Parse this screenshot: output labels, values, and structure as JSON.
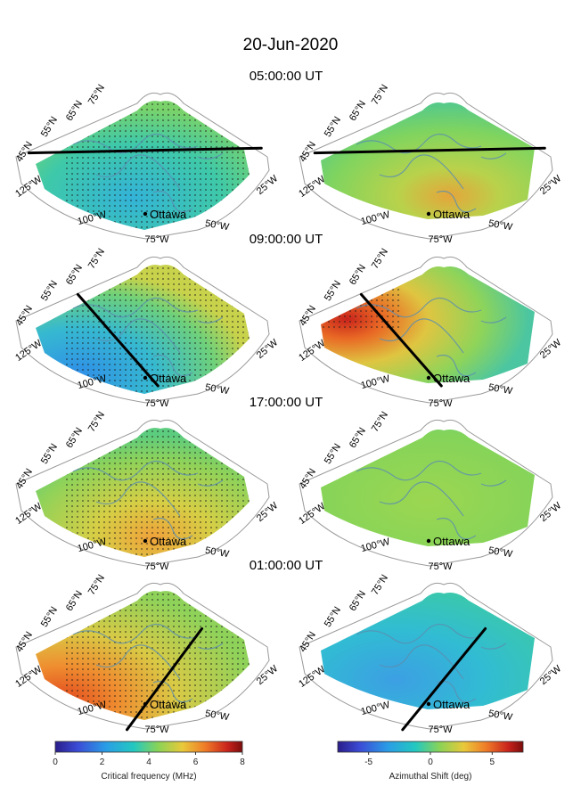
{
  "figure": {
    "title": "20-Jun-2020",
    "panel_rows": [
      {
        "time": "05:00:00 UT"
      },
      {
        "time": "09:00:00 UT"
      },
      {
        "time": "17:00:00 UT"
      },
      {
        "time": "01:00:00 UT"
      }
    ],
    "lat_labels": [
      "45°N",
      "55°N",
      "65°N",
      "75°N"
    ],
    "lon_labels": [
      "125°W",
      "100°W",
      "75°W",
      "50°W",
      "25°W"
    ],
    "city": "Ottawa",
    "colors": {
      "coast": "#5b8db0",
      "path": "#000000",
      "outline": "#9a9a9a",
      "city_dot": "#000000"
    }
  },
  "chart_data": [
    {
      "type": "heatmap",
      "name": "frequency-maps",
      "colorbar": {
        "label": "Critical frequency (MHz)",
        "range": [
          0,
          8
        ],
        "ticks": [
          "0",
          "2",
          "4",
          "6",
          "8"
        ],
        "tick_values": [
          0,
          2,
          4,
          6,
          8
        ],
        "colormap": "jet"
      },
      "panels": [
        {
          "time": "05:00:00 UT",
          "dominant_value": 3.6,
          "path": [
            [
              0.07,
              0.42
            ],
            [
              0.97,
              0.39
            ]
          ]
        },
        {
          "time": "09:00:00 UT",
          "dominant_value": 2.5,
          "path": [
            [
              0.26,
              0.28
            ],
            [
              0.57,
              0.85
            ]
          ]
        },
        {
          "time": "17:00:00 UT",
          "dominant_value": 4.3,
          "path": null
        },
        {
          "time": "01:00:00 UT",
          "dominant_value": 5.2,
          "path": [
            [
              0.74,
              0.33
            ],
            [
              0.45,
              0.96
            ]
          ]
        }
      ]
    },
    {
      "type": "heatmap",
      "name": "azimuth-maps",
      "colorbar": {
        "label": "Azimuthal Shift (deg)",
        "range": [
          -7.5,
          7.5
        ],
        "ticks": [
          "-5",
          "0",
          "5"
        ],
        "tick_values": [
          -5,
          0,
          5
        ],
        "colormap": "jet"
      },
      "panels": [
        {
          "time": "05:00:00 UT",
          "dominant_value": 0.6,
          "path": [
            [
              0.08,
              0.42
            ],
            [
              0.97,
              0.39
            ]
          ]
        },
        {
          "time": "09:00:00 UT",
          "dominant_value": 1.2,
          "path": [
            [
              0.26,
              0.28
            ],
            [
              0.57,
              0.85
            ]
          ]
        },
        {
          "time": "17:00:00 UT",
          "dominant_value": 0.4,
          "path": null
        },
        {
          "time": "01:00:00 UT",
          "dominant_value": -1.6,
          "path": [
            [
              0.74,
              0.33
            ],
            [
              0.42,
              0.96
            ]
          ]
        }
      ]
    }
  ]
}
